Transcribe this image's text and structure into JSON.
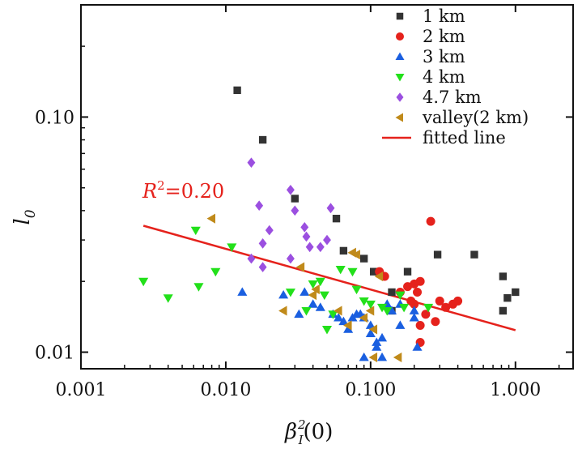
{
  "chart_data": {
    "type": "scatter",
    "x_scale": "log",
    "y_scale": "log",
    "xlim": [
      0.001,
      2.5
    ],
    "ylim": [
      0.0085,
      0.3
    ],
    "xticks": [
      0.001,
      0.01,
      0.1,
      1
    ],
    "xtick_labels": [
      "0.001",
      "0.010",
      "0.100",
      "1.000"
    ],
    "yticks": [
      0.01,
      0.1
    ],
    "ytick_labels": [
      "0.01",
      "0.10"
    ],
    "ylabel": "l",
    "ylabel_sub": "0",
    "xlabel": "β",
    "xlabel_sup": "2",
    "xlabel_sub": "I",
    "xlabel_tail": "(0)",
    "legend_position": "top-right",
    "series": [
      {
        "name": "1 km",
        "marker": "square",
        "color": "#333333",
        "points": [
          [
            0.012,
            0.13
          ],
          [
            0.018,
            0.08
          ],
          [
            0.03,
            0.045
          ],
          [
            0.058,
            0.037
          ],
          [
            0.065,
            0.027
          ],
          [
            0.09,
            0.025
          ],
          [
            0.105,
            0.022
          ],
          [
            0.14,
            0.018
          ],
          [
            0.14,
            0.015
          ],
          [
            0.18,
            0.022
          ],
          [
            0.29,
            0.026
          ],
          [
            0.52,
            0.026
          ],
          [
            0.82,
            0.021
          ],
          [
            0.82,
            0.015
          ],
          [
            0.88,
            0.017
          ],
          [
            1.0,
            0.018
          ]
        ]
      },
      {
        "name": "2 km",
        "marker": "circle",
        "color": "#e5221c",
        "points": [
          [
            0.115,
            0.022
          ],
          [
            0.125,
            0.021
          ],
          [
            0.16,
            0.018
          ],
          [
            0.18,
            0.019
          ],
          [
            0.19,
            0.0165
          ],
          [
            0.2,
            0.0195
          ],
          [
            0.2,
            0.016
          ],
          [
            0.21,
            0.018
          ],
          [
            0.22,
            0.02
          ],
          [
            0.22,
            0.013
          ],
          [
            0.22,
            0.011
          ],
          [
            0.26,
            0.036
          ],
          [
            0.28,
            0.0135
          ],
          [
            0.3,
            0.0165
          ],
          [
            0.33,
            0.0155
          ],
          [
            0.37,
            0.016
          ],
          [
            0.4,
            0.0165
          ],
          [
            0.24,
            0.0145
          ]
        ]
      },
      {
        "name": "3 km",
        "marker": "triangle-up",
        "color": "#1a5fe0",
        "points": [
          [
            0.013,
            0.018
          ],
          [
            0.025,
            0.0175
          ],
          [
            0.032,
            0.0145
          ],
          [
            0.035,
            0.018
          ],
          [
            0.04,
            0.016
          ],
          [
            0.045,
            0.0155
          ],
          [
            0.055,
            0.0145
          ],
          [
            0.06,
            0.014
          ],
          [
            0.065,
            0.0135
          ],
          [
            0.075,
            0.014
          ],
          [
            0.08,
            0.0145
          ],
          [
            0.085,
            0.0145
          ],
          [
            0.09,
            0.014
          ],
          [
            0.1,
            0.013
          ],
          [
            0.1,
            0.012
          ],
          [
            0.11,
            0.011
          ],
          [
            0.11,
            0.0105
          ],
          [
            0.12,
            0.0115
          ],
          [
            0.13,
            0.016
          ],
          [
            0.14,
            0.015
          ],
          [
            0.16,
            0.013
          ],
          [
            0.2,
            0.014
          ],
          [
            0.2,
            0.015
          ],
          [
            0.21,
            0.0105
          ],
          [
            0.09,
            0.0095
          ],
          [
            0.07,
            0.0125
          ],
          [
            0.12,
            0.0095
          ],
          [
            0.16,
            0.016
          ]
        ]
      },
      {
        "name": "4 km",
        "marker": "triangle-down",
        "color": "#22e01a",
        "points": [
          [
            0.0027,
            0.02
          ],
          [
            0.004,
            0.017
          ],
          [
            0.0062,
            0.033
          ],
          [
            0.0065,
            0.019
          ],
          [
            0.0085,
            0.022
          ],
          [
            0.011,
            0.028
          ],
          [
            0.028,
            0.018
          ],
          [
            0.036,
            0.015
          ],
          [
            0.04,
            0.0195
          ],
          [
            0.045,
            0.02
          ],
          [
            0.048,
            0.0175
          ],
          [
            0.05,
            0.0125
          ],
          [
            0.055,
            0.0145
          ],
          [
            0.062,
            0.0225
          ],
          [
            0.075,
            0.022
          ],
          [
            0.08,
            0.0185
          ],
          [
            0.09,
            0.0165
          ],
          [
            0.1,
            0.016
          ],
          [
            0.12,
            0.0155
          ],
          [
            0.13,
            0.015
          ],
          [
            0.16,
            0.0175
          ],
          [
            0.17,
            0.0155
          ],
          [
            0.25,
            0.0155
          ]
        ]
      },
      {
        "name": "4.7 km",
        "marker": "diamond",
        "color": "#9b4fe0",
        "points": [
          [
            0.015,
            0.064
          ],
          [
            0.017,
            0.042
          ],
          [
            0.018,
            0.029
          ],
          [
            0.02,
            0.033
          ],
          [
            0.015,
            0.025
          ],
          [
            0.018,
            0.023
          ],
          [
            0.028,
            0.049
          ],
          [
            0.03,
            0.04
          ],
          [
            0.035,
            0.034
          ],
          [
            0.036,
            0.031
          ],
          [
            0.038,
            0.028
          ],
          [
            0.045,
            0.028
          ],
          [
            0.05,
            0.03
          ],
          [
            0.053,
            0.041
          ],
          [
            0.028,
            0.025
          ]
        ]
      },
      {
        "name": "valley(2 km)",
        "marker": "triangle-left",
        "color": "#c08a1a",
        "points": [
          [
            0.008,
            0.037
          ],
          [
            0.025,
            0.015
          ],
          [
            0.033,
            0.023
          ],
          [
            0.04,
            0.0175
          ],
          [
            0.042,
            0.0185
          ],
          [
            0.06,
            0.015
          ],
          [
            0.075,
            0.0265
          ],
          [
            0.08,
            0.026
          ],
          [
            0.09,
            0.014
          ],
          [
            0.1,
            0.015
          ],
          [
            0.105,
            0.0125
          ],
          [
            0.105,
            0.0095
          ],
          [
            0.115,
            0.021
          ],
          [
            0.155,
            0.0095
          ],
          [
            0.07,
            0.013
          ]
        ]
      }
    ],
    "fit_line": {
      "name": "fitted line",
      "color": "#e5221c",
      "points": [
        [
          0.0027,
          0.0345
        ],
        [
          1.0,
          0.0124
        ]
      ]
    },
    "annotation": {
      "prefix": "R",
      "sup": "2",
      "suffix": "=0.20"
    }
  }
}
